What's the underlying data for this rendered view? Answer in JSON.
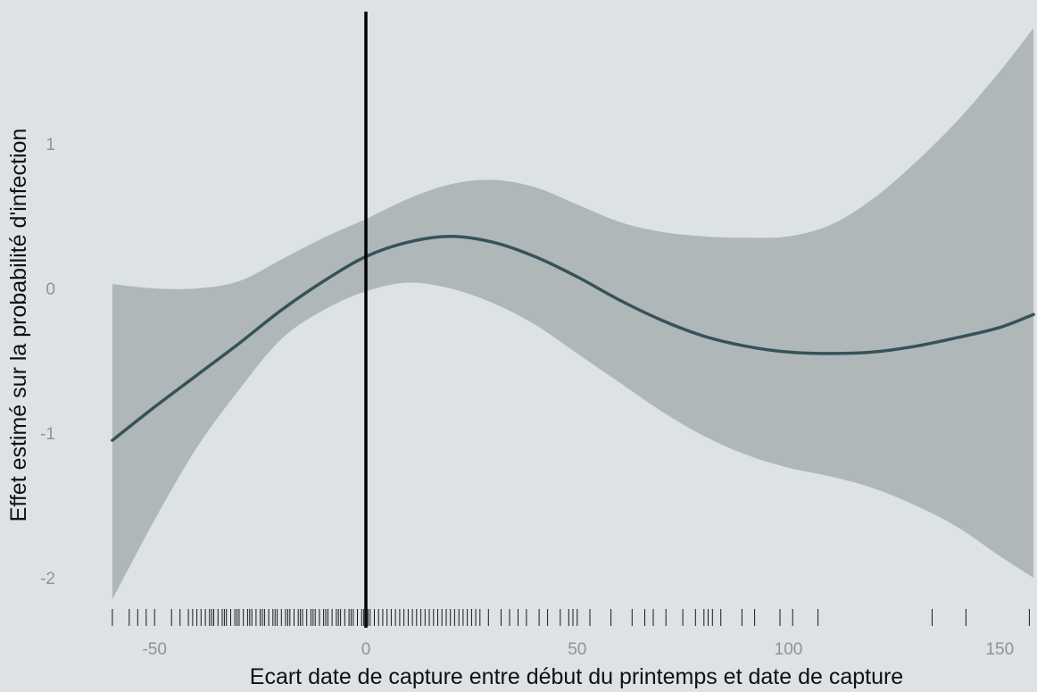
{
  "chart_data": {
    "type": "line",
    "title": "",
    "xlabel": "Ecart date de capture entre début du printemps et date de capture",
    "ylabel": "Effet estimé sur la probabilité d'infection",
    "xlim": [
      -61,
      158
    ],
    "ylim": [
      -2.2,
      1.8
    ],
    "x_ticks": [
      -50,
      0,
      50,
      100,
      150
    ],
    "y_ticks": [
      -2,
      -1,
      0,
      1
    ],
    "grid": false,
    "legend": "none",
    "reference_line_x": 0,
    "series": [
      {
        "x": [
          -60,
          -50,
          -40,
          -30,
          -20,
          -10,
          0,
          10,
          20,
          30,
          40,
          50,
          60,
          70,
          80,
          90,
          100,
          110,
          120,
          130,
          140,
          150,
          158
        ],
        "y": [
          -1.05,
          -0.82,
          -0.6,
          -0.38,
          -0.15,
          0.05,
          0.22,
          0.32,
          0.36,
          0.32,
          0.22,
          0.08,
          -0.08,
          -0.22,
          -0.33,
          -0.4,
          -0.44,
          -0.45,
          -0.44,
          -0.4,
          -0.34,
          -0.27,
          -0.18
        ],
        "lower": [
          -2.15,
          -1.6,
          -1.1,
          -0.7,
          -0.35,
          -0.15,
          -0.02,
          0.04,
          0.0,
          -0.1,
          -0.25,
          -0.45,
          -0.65,
          -0.85,
          -1.02,
          -1.15,
          -1.24,
          -1.3,
          -1.38,
          -1.5,
          -1.65,
          -1.85,
          -2.0
        ],
        "upper": [
          0.03,
          0.0,
          0.0,
          0.05,
          0.2,
          0.35,
          0.48,
          0.62,
          0.72,
          0.75,
          0.7,
          0.58,
          0.46,
          0.39,
          0.36,
          0.35,
          0.36,
          0.44,
          0.62,
          0.87,
          1.16,
          1.5,
          1.8
        ]
      }
    ],
    "rug_x": [
      -60,
      -56,
      -54,
      -52,
      -50,
      -46,
      -44,
      -42,
      -41,
      -40,
      -39,
      -38,
      -37,
      -36.5,
      -36,
      -35,
      -34,
      -33.5,
      -33,
      -32,
      -31,
      -30.5,
      -30,
      -29,
      -28,
      -27.5,
      -27,
      -26,
      -25,
      -24.5,
      -24,
      -23,
      -22,
      -21.5,
      -21,
      -20,
      -19,
      -18.5,
      -18,
      -17,
      -16,
      -15.5,
      -15,
      -14,
      -13,
      -12.5,
      -12,
      -11,
      -10,
      -9.5,
      -9,
      -8,
      -7,
      -6.5,
      -6,
      -5,
      -4,
      -3.5,
      -3,
      -2,
      -1,
      -0.5,
      0,
      0.5,
      1,
      2,
      3,
      4,
      5,
      6,
      7,
      8,
      9,
      10,
      11,
      12,
      13,
      14,
      15,
      16,
      17,
      18,
      19,
      20,
      21,
      22,
      23,
      24,
      25,
      26,
      27,
      29,
      32,
      34,
      36,
      38,
      41,
      43,
      46,
      48,
      49,
      50,
      53,
      58,
      63,
      66,
      68,
      71,
      75,
      78,
      80,
      81,
      82,
      84,
      89,
      92,
      98,
      101,
      107,
      134,
      142,
      157
    ],
    "colors": {
      "background": "#dce2e5",
      "band": "#b0b7b8",
      "line": "#36525a",
      "reference": "#000000",
      "rug": "#1a1a1a",
      "tick_label": "#8f9496"
    }
  }
}
